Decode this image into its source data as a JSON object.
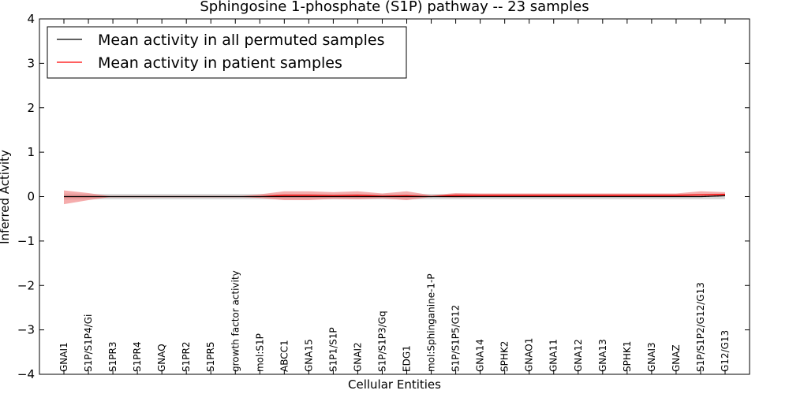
{
  "chart_data": {
    "type": "line",
    "title": "Sphingosine 1-phosphate (S1P) pathway -- 23 samples",
    "xlabel": "Cellular Entities",
    "ylabel": "Inferred Activity",
    "ylim": [
      -4,
      4
    ],
    "yticks": [
      "4",
      "3",
      "2",
      "1",
      "0",
      "−1",
      "−2",
      "−3",
      "−4"
    ],
    "ytick_values": [
      4,
      3,
      2,
      1,
      0,
      -1,
      -2,
      -3,
      -4
    ],
    "legend_position": "top-left",
    "colors": {
      "permuted": "#000000",
      "patient": "#ff0000",
      "permuted_band": "#c8c8c8",
      "patient_band": "#f08080"
    },
    "categories": [
      "GNAI1",
      "S1P/S1P4/Gi",
      "S1PR3",
      "S1PR4",
      "GNAQ",
      "S1PR2",
      "S1PR5",
      "growth factor activity",
      "mol:S1P",
      "ABCC1",
      "GNA15",
      "S1P1/S1P",
      "GNAI2",
      "S1P/S1P3/Gq",
      "EDG1",
      "mol:Sphinganine-1-P",
      "S1P/S1P5/G12",
      "GNA14",
      "SPHK2",
      "GNAO1",
      "GNA11",
      "GNA12",
      "GNA13",
      "SPHK1",
      "GNAI3",
      "GNAZ",
      "S1P/S1P2/G12/G13",
      "G12/G13"
    ],
    "series": [
      {
        "name": "Mean activity in all permuted samples",
        "color": "#000000",
        "values": [
          0.0,
          0.0,
          0.0,
          0.0,
          0.0,
          0.0,
          0.0,
          0.0,
          0.0,
          0.0,
          0.0,
          0.0,
          0.0,
          0.0,
          0.0,
          0.0,
          0.0,
          0.0,
          0.0,
          0.0,
          0.0,
          0.0,
          0.0,
          0.0,
          0.0,
          0.0,
          0.0,
          0.02
        ],
        "band_lower": [
          -0.07,
          -0.06,
          -0.06,
          -0.06,
          -0.06,
          -0.06,
          -0.06,
          -0.06,
          -0.06,
          -0.06,
          -0.06,
          -0.06,
          -0.06,
          -0.06,
          -0.06,
          -0.06,
          -0.06,
          -0.06,
          -0.06,
          -0.06,
          -0.06,
          -0.06,
          -0.06,
          -0.06,
          -0.06,
          -0.06,
          -0.06,
          -0.06
        ],
        "band_upper": [
          0.07,
          0.06,
          0.06,
          0.06,
          0.06,
          0.06,
          0.06,
          0.06,
          0.06,
          0.06,
          0.06,
          0.06,
          0.06,
          0.06,
          0.06,
          0.06,
          0.06,
          0.06,
          0.06,
          0.06,
          0.06,
          0.06,
          0.06,
          0.06,
          0.06,
          0.06,
          0.06,
          0.07
        ]
      },
      {
        "name": "Mean activity in patient samples",
        "color": "#ff0000",
        "values": [
          0.0,
          0.0,
          0.0,
          0.0,
          0.0,
          0.0,
          0.0,
          0.0,
          0.0,
          0.03,
          0.03,
          0.02,
          0.03,
          0.01,
          0.02,
          0.0,
          0.03,
          0.03,
          0.03,
          0.03,
          0.03,
          0.03,
          0.03,
          0.03,
          0.03,
          0.03,
          0.04,
          0.05
        ],
        "band_lower": [
          -0.17,
          -0.08,
          0.0,
          0.0,
          0.0,
          0.0,
          0.0,
          0.0,
          -0.03,
          -0.08,
          -0.08,
          -0.05,
          -0.06,
          -0.04,
          -0.08,
          -0.01,
          -0.02,
          -0.01,
          -0.01,
          -0.01,
          -0.01,
          -0.01,
          -0.01,
          -0.01,
          -0.01,
          -0.01,
          0.0,
          0.01
        ],
        "band_upper": [
          0.14,
          0.08,
          0.0,
          0.0,
          0.0,
          0.0,
          0.0,
          0.0,
          0.05,
          0.12,
          0.12,
          0.1,
          0.12,
          0.07,
          0.12,
          0.03,
          0.08,
          0.07,
          0.07,
          0.07,
          0.07,
          0.07,
          0.07,
          0.07,
          0.07,
          0.07,
          0.12,
          0.1
        ]
      }
    ]
  }
}
